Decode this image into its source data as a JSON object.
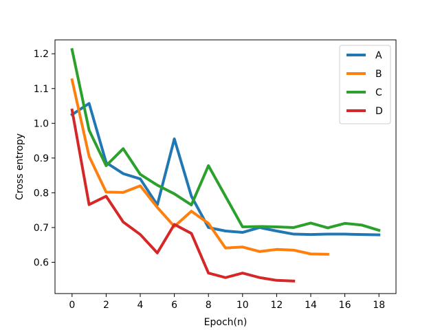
{
  "chart_data": {
    "type": "line",
    "title": "",
    "xlabel": "Epoch(n)",
    "ylabel": "Cross entropy",
    "xlim": [
      -1,
      19
    ],
    "ylim": [
      0.51,
      1.24
    ],
    "xticks": [
      0,
      2,
      4,
      6,
      8,
      10,
      12,
      14,
      16,
      18
    ],
    "yticks": [
      0.6,
      0.7,
      0.8,
      0.9,
      1.0,
      1.1,
      1.2
    ],
    "ytick_labels": [
      "0.6",
      "0.7",
      "0.8",
      "0.9",
      "1.0",
      "1.1",
      "1.2"
    ],
    "grid": false,
    "legend_position": "top-right",
    "series": [
      {
        "name": "A",
        "color": "#1f77b4",
        "x": [
          0,
          1,
          2,
          3,
          4,
          5,
          6,
          7,
          8,
          9,
          10,
          11,
          12,
          13,
          14,
          15,
          16,
          17,
          18
        ],
        "y": [
          1.025,
          1.057,
          0.887,
          0.855,
          0.84,
          0.765,
          0.955,
          0.79,
          0.7,
          0.69,
          0.686,
          0.7,
          0.69,
          0.681,
          0.68,
          0.681,
          0.681,
          0.68,
          0.679
        ]
      },
      {
        "name": "B",
        "color": "#ff7f0e",
        "x": [
          0,
          1,
          2,
          3,
          4,
          5,
          6,
          7,
          8,
          9,
          10,
          11,
          12,
          13,
          14,
          15
        ],
        "y": [
          1.125,
          0.905,
          0.802,
          0.801,
          0.82,
          0.758,
          0.703,
          0.747,
          0.712,
          0.641,
          0.644,
          0.631,
          0.637,
          0.635,
          0.624,
          0.623
        ]
      },
      {
        "name": "C",
        "color": "#2ca02c",
        "x": [
          0,
          1,
          2,
          3,
          4,
          5,
          6,
          7,
          8,
          9,
          10,
          11,
          12,
          13,
          14,
          15,
          16,
          17,
          18
        ],
        "y": [
          1.212,
          0.98,
          0.878,
          0.927,
          0.853,
          0.822,
          0.797,
          0.765,
          0.878,
          0.79,
          0.702,
          0.703,
          0.702,
          0.7,
          0.713,
          0.699,
          0.712,
          0.707,
          0.692
        ]
      },
      {
        "name": "D",
        "color": "#d62728",
        "x": [
          0,
          1,
          2,
          3,
          4,
          5,
          6,
          7,
          8,
          9,
          10,
          11,
          12,
          13
        ],
        "y": [
          1.038,
          0.766,
          0.79,
          0.716,
          0.68,
          0.627,
          0.709,
          0.683,
          0.569,
          0.556,
          0.569,
          0.556,
          0.548,
          0.546
        ]
      }
    ]
  }
}
